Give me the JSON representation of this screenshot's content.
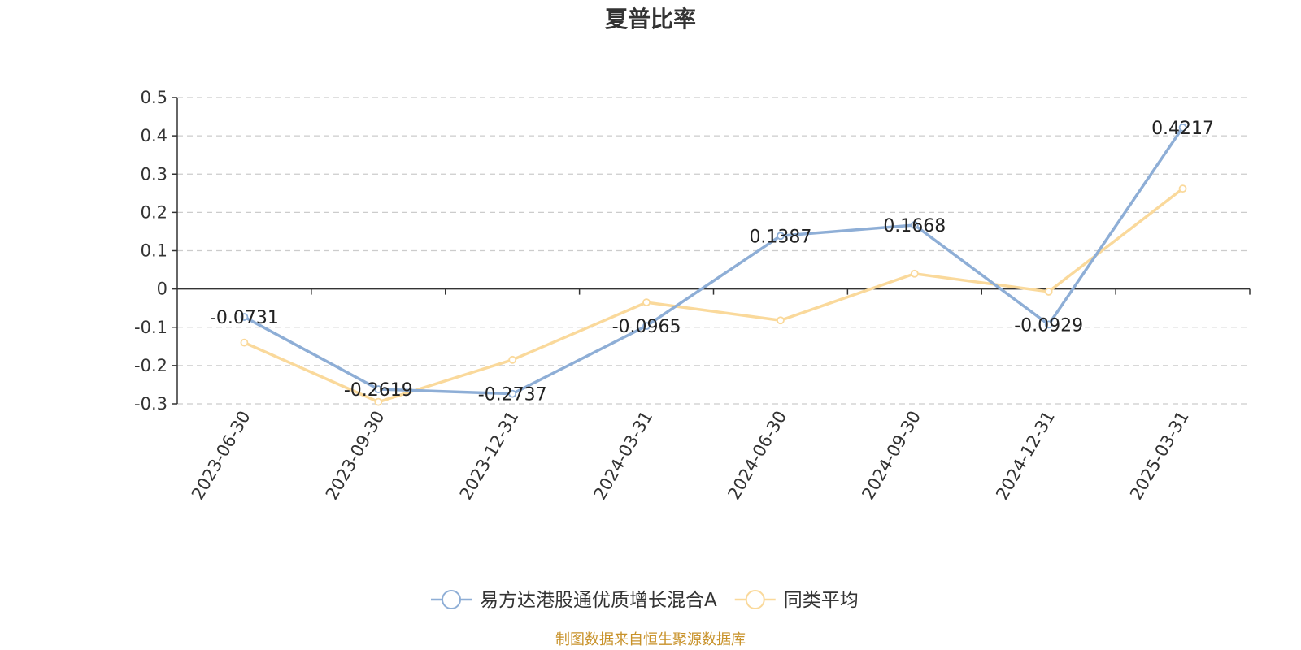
{
  "chart_data": {
    "type": "line",
    "title": "夏普比率",
    "xlabel": "",
    "ylabel": "",
    "categories": [
      "2023-06-30",
      "2023-09-30",
      "2023-12-31",
      "2024-03-31",
      "2024-06-30",
      "2024-09-30",
      "2024-12-31",
      "2025-03-31"
    ],
    "series": [
      {
        "name": "易方达港股通优质增长混合A",
        "color": "#8eaed6",
        "values": [
          -0.0731,
          -0.2619,
          -0.2737,
          -0.0965,
          0.1387,
          0.1668,
          -0.0929,
          0.4217
        ],
        "labels": [
          "-0.0731",
          "-0.2619",
          "-0.2737",
          "-0.0965",
          "0.1387",
          "0.1668",
          "-0.0929",
          "0.4217"
        ]
      },
      {
        "name": "同类平均",
        "color": "#fad99b",
        "values": [
          -0.14,
          -0.295,
          -0.185,
          -0.035,
          -0.082,
          0.04,
          -0.007,
          0.262
        ]
      }
    ],
    "ylim": [
      -0.3,
      0.5
    ],
    "yticks": [
      0.5,
      0.4,
      0.3,
      0.2,
      0.1,
      0,
      -0.1,
      -0.2,
      -0.3
    ],
    "ytick_labels": [
      "0.5",
      "0.4",
      "0.3",
      "0.2",
      "0.1",
      "0",
      "-0.1",
      "-0.2",
      "-0.3"
    ],
    "grid": true,
    "legend_position": "bottom-center"
  },
  "source_note": {
    "text": "制图数据来自恒生聚源数据库",
    "color": "#c8922a"
  }
}
